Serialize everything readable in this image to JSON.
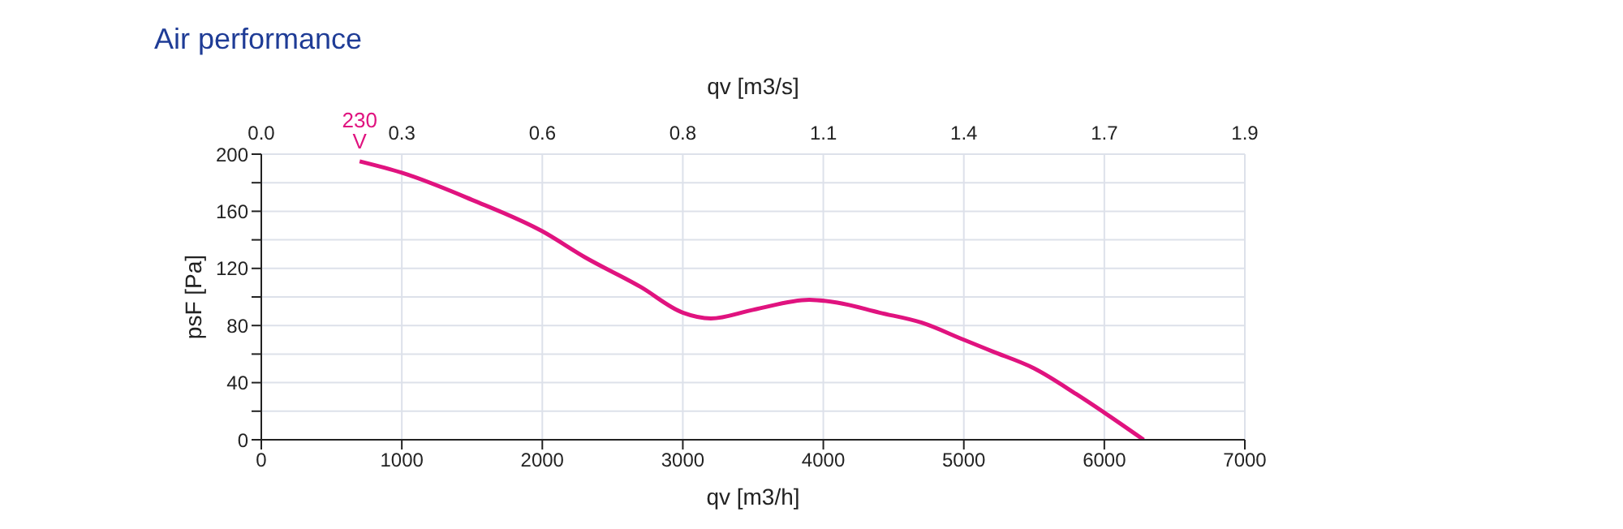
{
  "chart_data": {
    "type": "line",
    "title": "Air performance",
    "xlabel": "qv [m3/h]",
    "x2label": "qv [m3/s]",
    "ylabel": "psF [Pa]",
    "xlim": [
      0,
      7000
    ],
    "xticks": [
      0,
      1000,
      2000,
      3000,
      4000,
      5000,
      6000,
      7000
    ],
    "x2lim": [
      0,
      1.9444
    ],
    "x2ticks": [
      {
        "value": 0,
        "label": "0.0"
      },
      {
        "value": 0.2778,
        "label": "0.3"
      },
      {
        "value": 0.5556,
        "label": "0.6"
      },
      {
        "value": 0.8333,
        "label": "0.8"
      },
      {
        "value": 1.1111,
        "label": "1.1"
      },
      {
        "value": 1.3889,
        "label": "1.4"
      },
      {
        "value": 1.6667,
        "label": "1.7"
      },
      {
        "value": 1.9444,
        "label": "1.9"
      }
    ],
    "ylim": [
      0,
      200
    ],
    "yticks": [
      0,
      {
        "value": 20,
        "label": null
      },
      40,
      {
        "value": 60,
        "label": null
      },
      80,
      {
        "value": 100,
        "label": null
      },
      120,
      {
        "value": 140,
        "label": null
      },
      160,
      {
        "value": 180,
        "label": null
      },
      200
    ],
    "grid": true,
    "marker": "none",
    "line_style": "solid",
    "series": [
      {
        "color": "#e0137f",
        "x": [
          700,
          1000,
          1500,
          2000,
          2300,
          2700,
          3000,
          3200,
          3500,
          3900,
          4100,
          4400,
          4700,
          5000,
          5200,
          5500,
          5800,
          6000,
          6280
        ],
        "values": [
          195,
          187,
          168,
          146,
          128,
          107,
          89,
          85,
          91,
          98,
          96,
          89,
          82,
          70,
          62,
          50,
          32,
          19,
          0
        ]
      }
    ],
    "annotations": [
      {
        "text": "230 V",
        "x": 700,
        "y": 195
      }
    ]
  }
}
